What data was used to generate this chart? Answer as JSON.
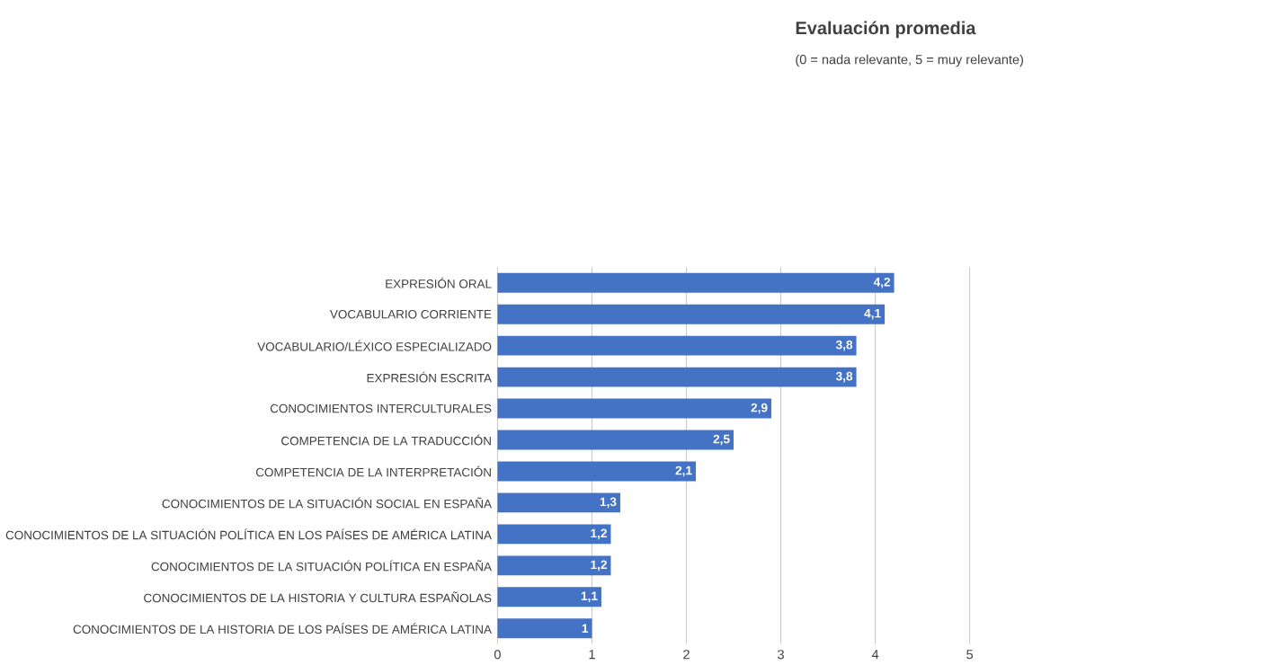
{
  "chart_data": {
    "type": "bar",
    "orientation": "horizontal",
    "title": "Evaluación promedia",
    "subtitle": "(0 = nada relevante,  5 = muy relevante)",
    "categories": [
      "EXPRESIÓN ORAL",
      "VOCABULARIO CORRIENTE",
      "VOCABULARIO/LÉXICO ESPECIALIZADO",
      "EXPRESIÓN ESCRITA",
      "CONOCIMIENTOS INTERCULTURALES",
      "COMPETENCIA DE LA TRADUCCIÓN",
      "COMPETENCIA DE LA INTERPRETACIÓN",
      "CONOCIMIENTOS DE LA SITUACIÓN SOCIAL EN ESPAÑA",
      "CONOCIMIENTOS DE LA SITUACIÓN POLÍTICA EN LOS PAÍSES DE AMÉRICA LATINA",
      "CONOCIMIENTOS DE LA SITUACIÓN POLÍTICA EN ESPAÑA",
      "CONOCIMIENTOS DE LA HISTORIA Y CULTURA ESPAÑOLAS",
      "CONOCIMIENTOS DE LA HISTORIA DE LOS PAÍSES DE AMÉRICA LATINA"
    ],
    "values": [
      4.2,
      4.1,
      3.8,
      3.8,
      2.9,
      2.5,
      2.1,
      1.3,
      1.2,
      1.2,
      1.1,
      1
    ],
    "value_labels": [
      "4,2",
      "4,1",
      "3,8",
      "3,8",
      "2,9",
      "2,5",
      "2,1",
      "1,3",
      "1,2",
      "1,2",
      "1,1",
      "1"
    ],
    "color": "#4472c4",
    "xlim": [
      0,
      5
    ],
    "xticks": [
      0,
      1,
      2,
      3,
      4,
      5
    ],
    "grid": "x"
  }
}
